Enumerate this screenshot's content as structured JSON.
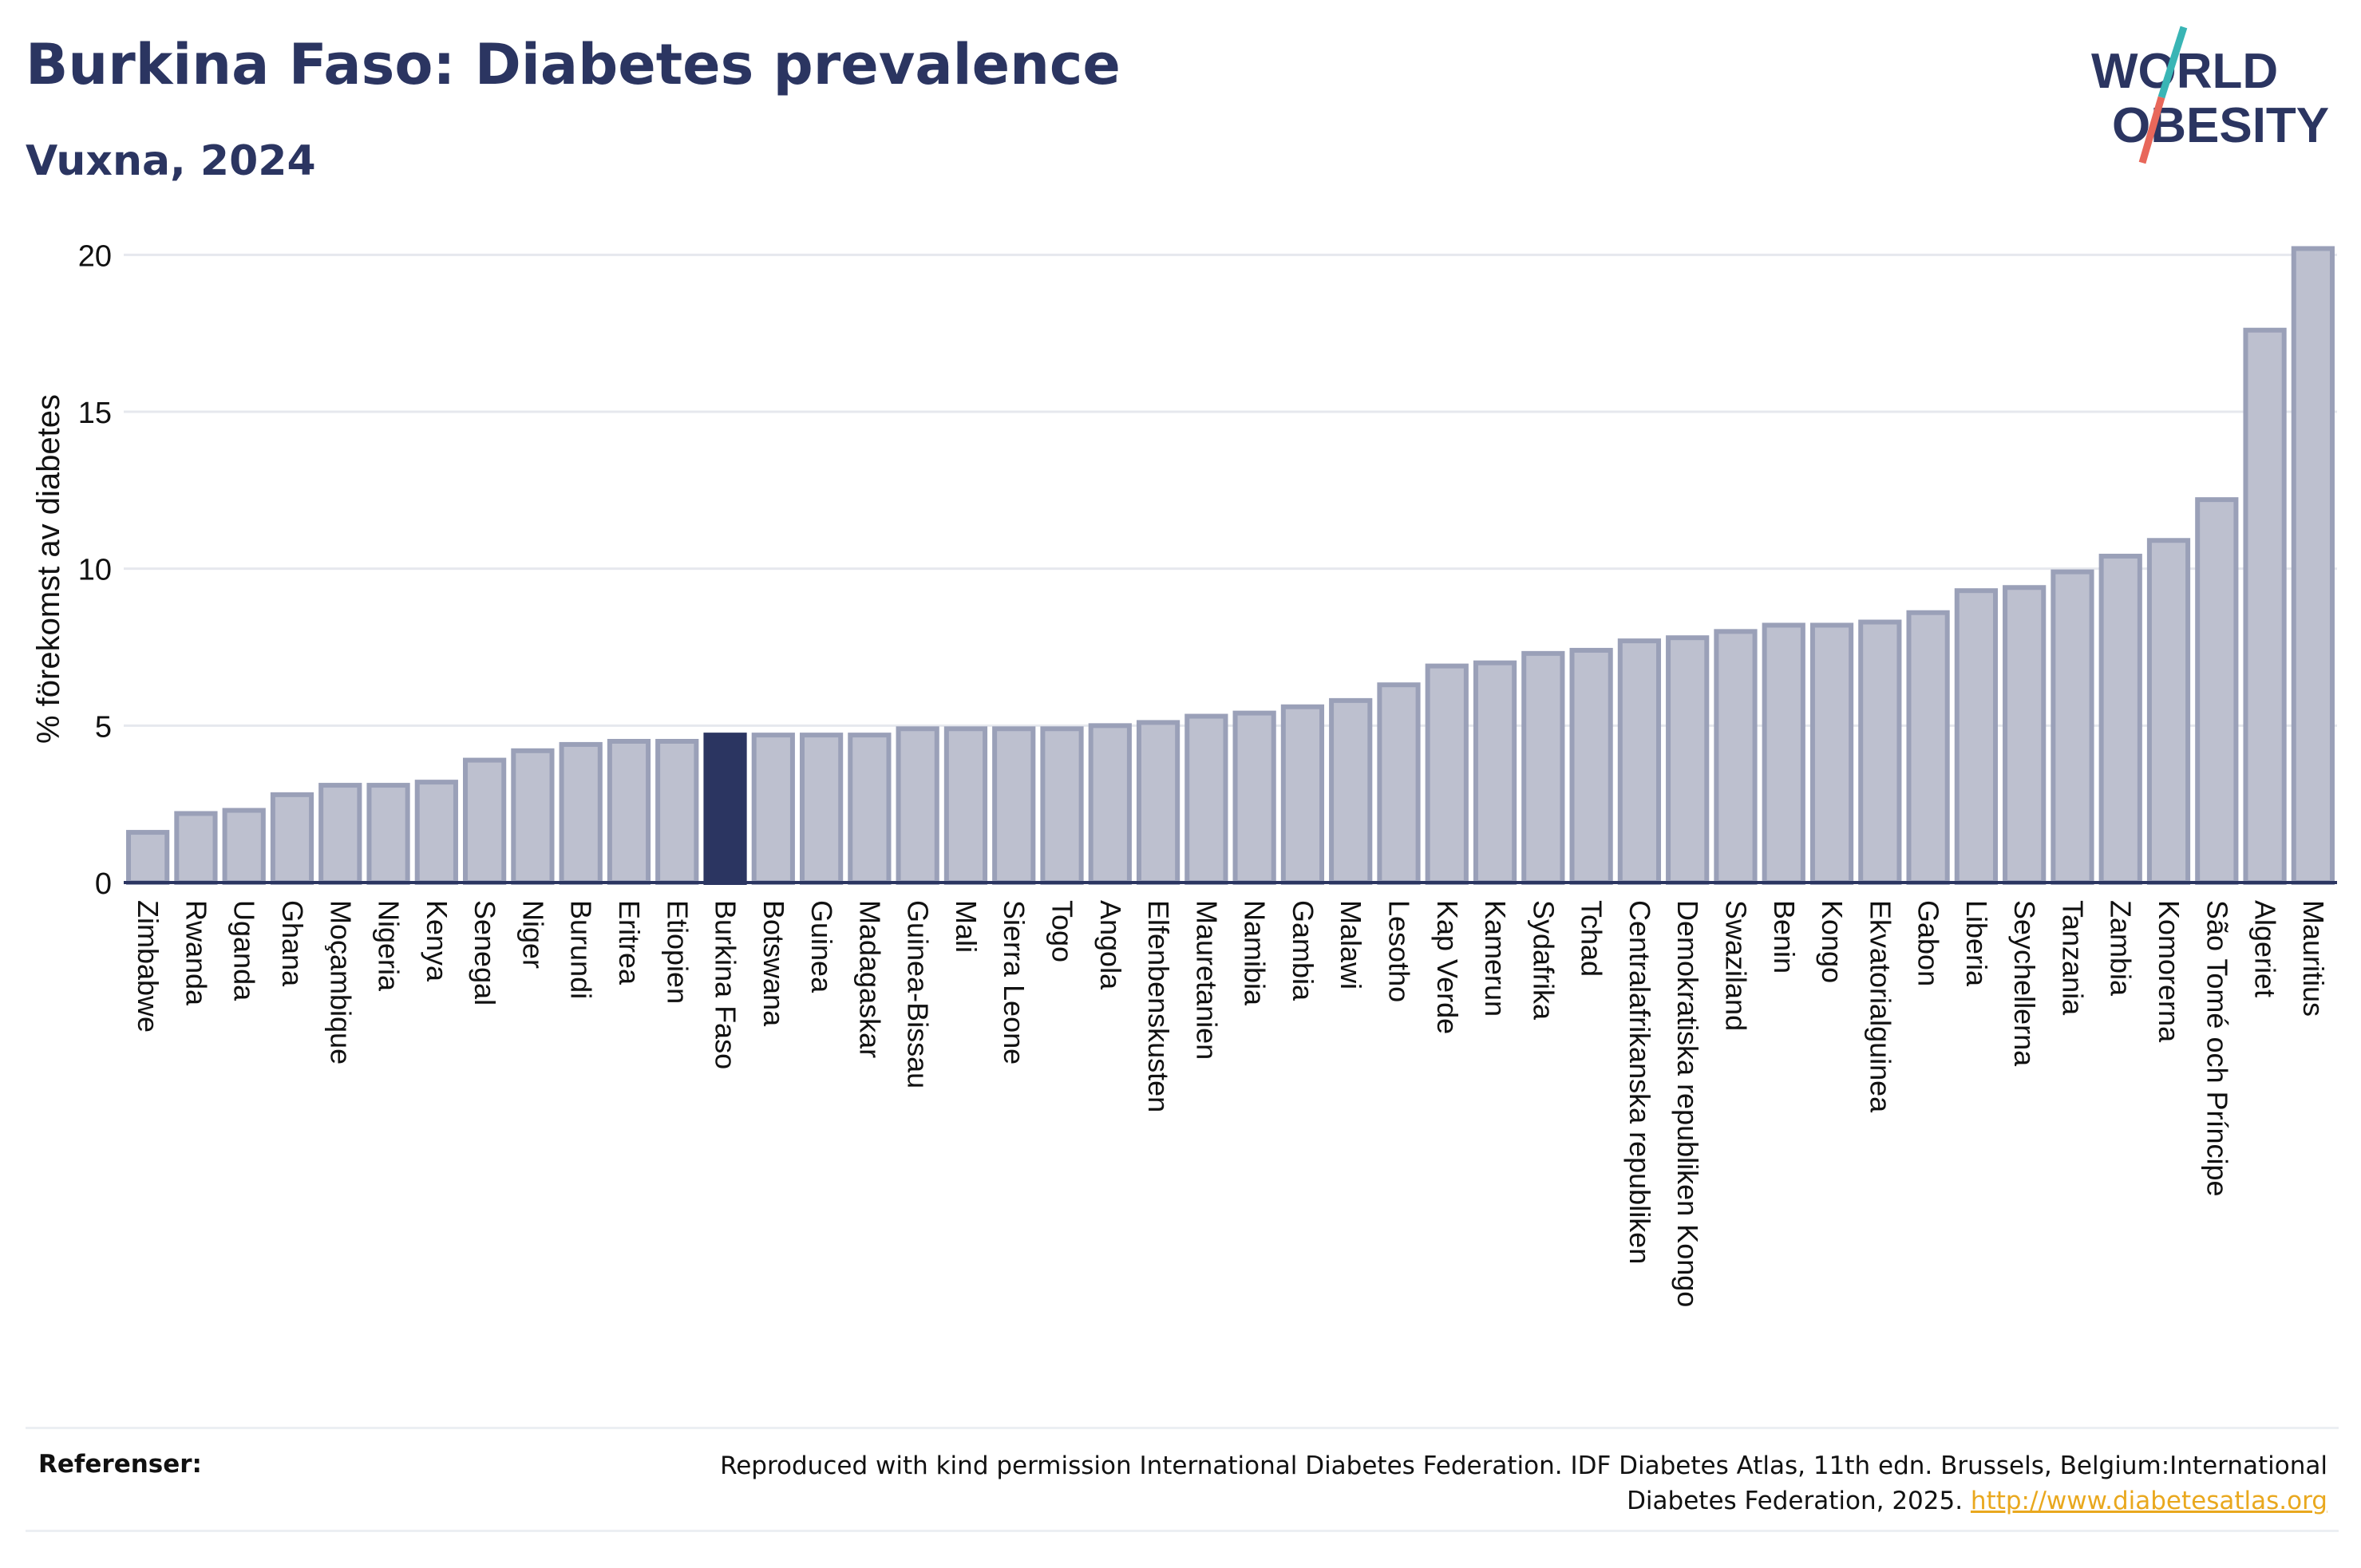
{
  "header": {
    "title": "Burkina Faso: Diabetes prevalence",
    "subtitle": "Vuxna, 2024"
  },
  "logo": {
    "line1": "WORLD",
    "line2": "OBESITY",
    "colors": {
      "text": "#2b3561",
      "slash_top": "#39b5b5",
      "slash_bottom": "#e8675a"
    }
  },
  "chart_data": {
    "type": "bar",
    "title": "Burkina Faso: Diabetes prevalence",
    "subtitle": "Vuxna, 2024",
    "xlabel": "",
    "ylabel": "% förekomst av diabetes",
    "ylim": [
      0,
      21
    ],
    "yticks": [
      0,
      5,
      10,
      15,
      20
    ],
    "grid": true,
    "highlight": "Burkina Faso",
    "colors": {
      "bar": "#bdc0cf",
      "bar_edge": "#9aa0b8",
      "highlight": "#2b3561",
      "grid": "#e6e8ee"
    },
    "categories": [
      "Zimbabwe",
      "Rwanda",
      "Uganda",
      "Ghana",
      "Moçambique",
      "Nigeria",
      "Kenya",
      "Senegal",
      "Niger",
      "Burundi",
      "Eritrea",
      "Etiopien",
      "Burkina Faso",
      "Botswana",
      "Guinea",
      "Madagaskar",
      "Guinea-Bissau",
      "Mali",
      "Sierra Leone",
      "Togo",
      "Angola",
      "Elfenbenskusten",
      "Mauretanien",
      "Namibia",
      "Gambia",
      "Malawi",
      "Lesotho",
      "Kap Verde",
      "Kamerun",
      "Sydafrika",
      "Tchad",
      "Centralafrikanska republiken",
      "Demokratiska republiken Kongo",
      "Swaziland",
      "Benin",
      "Kongo",
      "Ekvatorialguinea",
      "Gabon",
      "Liberia",
      "Seychellerna",
      "Tanzania",
      "Zambia",
      "Komorerna",
      "São Tomé och Príncipe",
      "Algeriet",
      "Mauritius"
    ],
    "values": [
      1.6,
      2.2,
      2.3,
      2.8,
      3.1,
      3.1,
      3.2,
      3.9,
      4.2,
      4.4,
      4.5,
      4.5,
      4.7,
      4.7,
      4.7,
      4.7,
      4.9,
      4.9,
      4.9,
      4.9,
      5.0,
      5.1,
      5.3,
      5.4,
      5.6,
      5.8,
      6.3,
      6.9,
      7.0,
      7.3,
      7.4,
      7.7,
      7.8,
      8.0,
      8.2,
      8.2,
      8.3,
      8.6,
      9.3,
      9.4,
      9.9,
      10.4,
      10.9,
      12.2,
      17.6,
      20.2
    ]
  },
  "references": {
    "label": "Referenser:",
    "text": "Reproduced with kind permission International Diabetes Federation. IDF Diabetes Atlas, 11th edn. Brussels, Belgium:International Diabetes Federation, 2025.",
    "link": "http://www.diabetesatlas.org"
  }
}
